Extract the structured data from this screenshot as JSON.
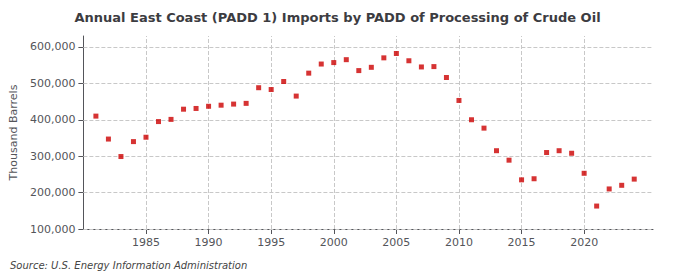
{
  "chart_data": {
    "type": "scatter",
    "title": "Annual East Coast (PADD 1) Imports by PADD of Processing of Crude Oil",
    "ylabel": "Thousand Barrels",
    "source": "Source: U.S. Energy Information Administration",
    "color": "#cc0000",
    "marker": "square",
    "grid": true,
    "x": [
      1981,
      1982,
      1983,
      1984,
      1985,
      1986,
      1987,
      1988,
      1989,
      1990,
      1991,
      1992,
      1993,
      1994,
      1995,
      1996,
      1997,
      1998,
      1999,
      2000,
      2001,
      2002,
      2003,
      2004,
      2005,
      2006,
      2007,
      2008,
      2009,
      2010,
      2011,
      2012,
      2013,
      2014,
      2015,
      2016,
      2017,
      2018,
      2019,
      2020,
      2021,
      2022,
      2023,
      2024
    ],
    "values": [
      410000,
      347000,
      299000,
      340000,
      352000,
      395000,
      401000,
      429000,
      431000,
      437000,
      440000,
      443000,
      445000,
      488000,
      483000,
      505000,
      465000,
      528000,
      553000,
      557000,
      565000,
      535000,
      544000,
      570000,
      582000,
      562000,
      545000,
      546000,
      516000,
      453000,
      400000,
      377000,
      315000,
      289000,
      235000,
      238000,
      310000,
      315000,
      308000,
      253000,
      163000,
      210000,
      220000,
      237000
    ],
    "xlim": [
      1980.0,
      2025.5
    ],
    "xticks": [
      1985,
      1990,
      1995,
      2000,
      2005,
      2010,
      2015,
      2020
    ],
    "ylim": [
      100000,
      630000
    ],
    "yticks": [
      {
        "value": 100000,
        "label": "100,000"
      },
      {
        "value": 200000,
        "label": "200,000"
      },
      {
        "value": 300000,
        "label": "300,000"
      },
      {
        "value": 400000,
        "label": "400,000"
      },
      {
        "value": 500000,
        "label": "500,000"
      },
      {
        "value": 600000,
        "label": "600,000"
      }
    ]
  }
}
